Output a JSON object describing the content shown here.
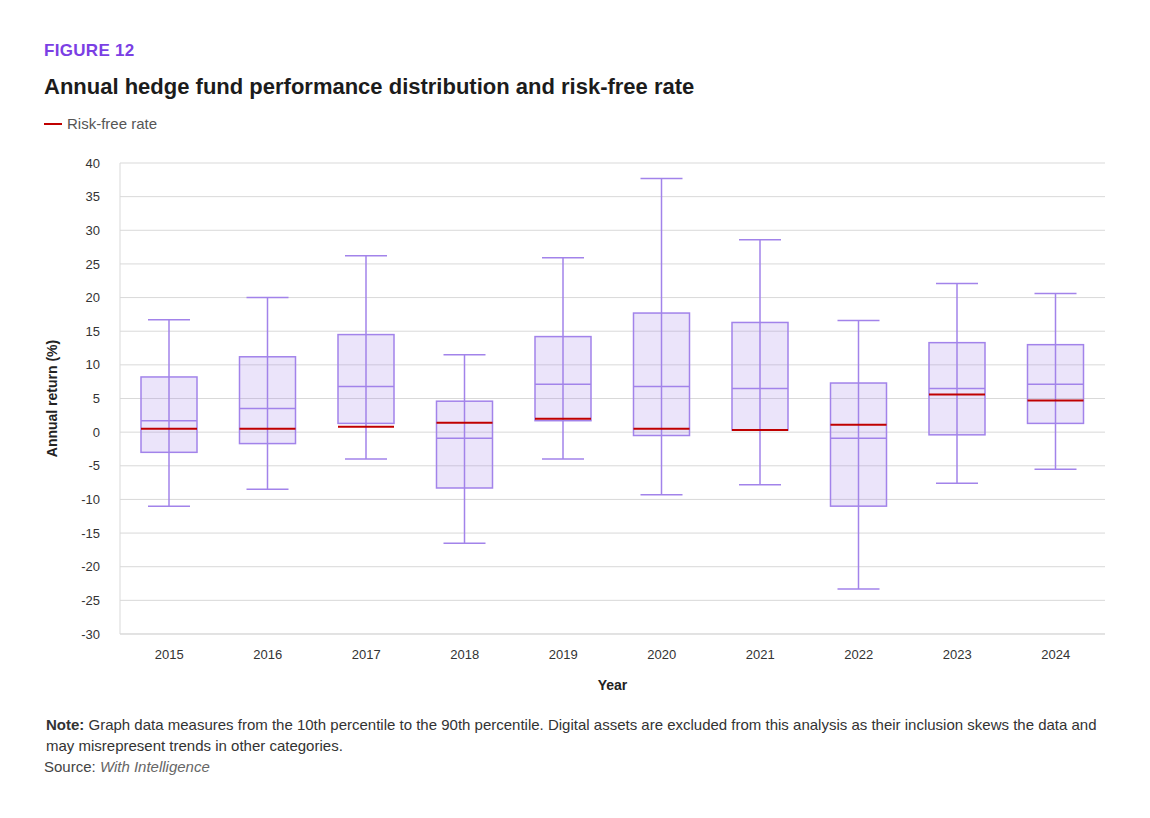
{
  "chart_data": {
    "type": "box",
    "figure_label": "FIGURE 12",
    "title": "Annual hedge fund performance distribution and risk-free rate",
    "x_label": "Year",
    "y_label": "Annual return (%)",
    "categories": [
      "2015",
      "2016",
      "2017",
      "2018",
      "2019",
      "2020",
      "2021",
      "2022",
      "2023",
      "2024"
    ],
    "p10": [
      -11,
      -8.5,
      -4,
      -16.5,
      -4,
      -9.3,
      -7.8,
      -23.3,
      -7.6,
      -5.5
    ],
    "q1": [
      -3,
      -1.7,
      1.3,
      -8.3,
      1.7,
      -0.5,
      0.3,
      -11,
      -0.4,
      1.3
    ],
    "median": [
      1.7,
      3.5,
      6.8,
      -0.9,
      7.1,
      6.8,
      6.5,
      -0.9,
      6.5,
      7.1
    ],
    "q3": [
      8.2,
      11.2,
      14.5,
      4.6,
      14.2,
      17.7,
      16.3,
      7.3,
      13.3,
      13
    ],
    "p90": [
      16.7,
      20,
      26.2,
      11.5,
      25.9,
      37.7,
      28.6,
      16.6,
      22.1,
      20.6
    ],
    "color": "#a283ea",
    "risk_free_rate": {
      "name": "Risk-free rate",
      "color": "#c00000",
      "values": [
        0.5,
        0.5,
        0.8,
        1.4,
        2.0,
        0.5,
        0.3,
        1.1,
        5.6,
        4.7
      ]
    },
    "ylim": [
      -30,
      40
    ],
    "yticks": [
      -30,
      -25,
      -20,
      -15,
      -10,
      -5,
      0,
      5,
      10,
      15,
      20,
      25,
      30,
      35,
      40
    ],
    "grid": true,
    "legend": "top-left",
    "note_label": "Note:",
    "note": "Graph data measures from the 10th percentile to the 90th percentile. Digital assets are excluded from this analysis as their inclusion skews the data and may misrepresent trends in other categories.",
    "source_label": "Source:",
    "source": "With Intelligence"
  }
}
